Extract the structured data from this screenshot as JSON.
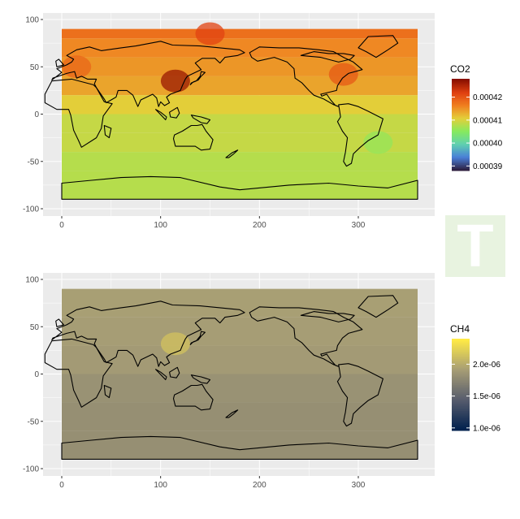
{
  "colors": {
    "panel_bg": "#ebebeb",
    "grid": "#ffffff",
    "logo_bg": "#e8f3e0"
  },
  "logo": {
    "text": "T",
    "icon": "watermark-logo"
  },
  "chart_data": [
    {
      "type": "heatmap",
      "title": "",
      "xlabel": "",
      "ylabel": "",
      "xlim": [
        0,
        360
      ],
      "ylim": [
        -100,
        100
      ],
      "x_ticks": [
        0,
        100,
        200,
        300
      ],
      "x_tick_labels": [
        "0",
        "100",
        "200",
        "300"
      ],
      "y_ticks": [
        100,
        50,
        0,
        -50,
        -100
      ],
      "y_tick_labels": [
        "100",
        "50",
        "0",
        "-50",
        "-100"
      ],
      "grid": true,
      "overlay": "world coastline map",
      "legend": {
        "title": "CO2",
        "placement": "right",
        "colors": [
          "#2d1e3e",
          "#4a80d8",
          "#5fd0b0",
          "#86ea5e",
          "#e3d03a",
          "#f08020",
          "#e04010",
          "#8a1000"
        ],
        "tick_values": [
          0.00042,
          0.00041,
          0.0004,
          0.00039
        ],
        "tick_labels": [
          "0.00042",
          "0.00041",
          "0.00040",
          "0.00039"
        ],
        "range": [
          0.000388,
          0.000428
        ]
      },
      "field": [
        {
          "lat_range": [
            80,
            90
          ],
          "value": 0.000418
        },
        {
          "lat_range": [
            60,
            80
          ],
          "value": 0.000416
        },
        {
          "lat_range": [
            40,
            60
          ],
          "value": 0.000415
        },
        {
          "lat_range": [
            20,
            40
          ],
          "value": 0.000414
        },
        {
          "lat_range": [
            0,
            20
          ],
          "value": 0.000411
        },
        {
          "lat_range": [
            -20,
            0
          ],
          "value": 0.000409
        },
        {
          "lat_range": [
            -40,
            -20
          ],
          "value": 0.000409
        },
        {
          "lat_range": [
            -60,
            -40
          ],
          "value": 0.000408
        },
        {
          "lat_range": [
            -90,
            -60
          ],
          "value": 0.000408
        }
      ],
      "hotspots": [
        {
          "lon": 115,
          "lat": 35,
          "value": 0.000427
        },
        {
          "lon": 150,
          "lat": 85,
          "value": 0.000422
        },
        {
          "lon": 285,
          "lat": 42,
          "value": 0.00042
        },
        {
          "lon": 15,
          "lat": 50,
          "value": 0.000419
        },
        {
          "lon": 320,
          "lat": -30,
          "value": 0.000406
        }
      ]
    },
    {
      "type": "heatmap",
      "title": "",
      "xlabel": "",
      "ylabel": "",
      "xlim": [
        0,
        360
      ],
      "ylim": [
        -100,
        100
      ],
      "x_ticks": [
        0,
        100,
        200,
        300
      ],
      "x_tick_labels": [
        "0",
        "100",
        "200",
        "300"
      ],
      "y_ticks": [
        100,
        50,
        0,
        -50,
        -100
      ],
      "y_tick_labels": [
        "100",
        "50",
        "0",
        "-50",
        "-100"
      ],
      "grid": true,
      "overlay": "world coastline map",
      "legend": {
        "title": "CH4",
        "placement": "right",
        "colors": [
          "#00204d",
          "#575c6d",
          "#a69d75",
          "#ffea46"
        ],
        "tick_values": [
          2e-06,
          1.5e-06,
          1e-06
        ],
        "tick_labels": [
          "2.0e-06",
          "1.5e-06",
          "1.0e-06"
        ],
        "range": [
          9.6e-07,
          2.4e-06
        ]
      },
      "field": [
        {
          "lat_range": [
            60,
            90
          ],
          "value": 1.93e-06
        },
        {
          "lat_range": [
            30,
            60
          ],
          "value": 1.92e-06
        },
        {
          "lat_range": [
            0,
            30
          ],
          "value": 1.9e-06
        },
        {
          "lat_range": [
            -30,
            0
          ],
          "value": 1.84e-06
        },
        {
          "lat_range": [
            -60,
            -30
          ],
          "value": 1.82e-06
        },
        {
          "lat_range": [
            -90,
            -60
          ],
          "value": 1.82e-06
        }
      ],
      "hotspots": [
        {
          "lon": 115,
          "lat": 32,
          "value": 2.15e-06
        }
      ]
    }
  ]
}
